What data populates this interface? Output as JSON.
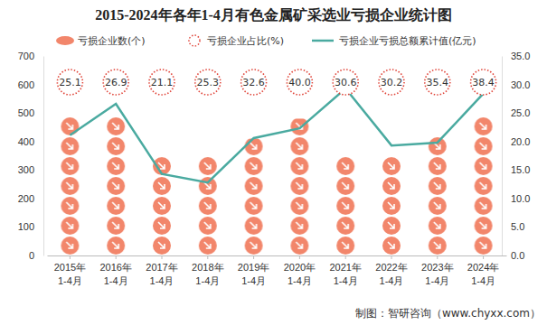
{
  "chart_data": {
    "type": "bar",
    "title": "2015-2024年各年1-4月有色金属矿采选业亏损企业统计图",
    "categories": [
      "2015年\n1-4月",
      "2016年\n1-4月",
      "2017年\n1-4月",
      "2018年\n1-4月",
      "2019年\n1-4月",
      "2020年\n1-4月",
      "2021年\n1-4月",
      "2022年\n1-4月",
      "2023年\n1-4月",
      "2024年\n1-4月"
    ],
    "series": [
      {
        "name": "亏损企业数(个)",
        "type": "bar",
        "marker": "circle",
        "color": "#f2866b",
        "values": [
          485,
          490,
          345,
          350,
          410,
          480,
          350,
          345,
          415,
          490
        ]
      },
      {
        "name": "亏损企业占比(%)",
        "type": "scatter",
        "marker": "circle",
        "line_style": "dotted",
        "color": "#e0453a",
        "data_labels": true,
        "values": [
          25.1,
          26.9,
          21.1,
          25.3,
          32.6,
          40,
          30.6,
          30.2,
          35.4,
          38.4
        ],
        "value_labels": [
          "25.1",
          "26.9",
          "21.1",
          "25.3",
          "32.6",
          "40.0",
          "30.6",
          "30.2",
          "35.4",
          "38.4"
        ]
      },
      {
        "name": "亏损企业亏损总额累计值(亿元)",
        "type": "line",
        "axis": "y2",
        "color": "#4aaaa0",
        "values": [
          21.1,
          26.6,
          14.3,
          12.8,
          20.6,
          22.3,
          29.3,
          19.3,
          19.8,
          28.4
        ]
      }
    ],
    "ylim": [
      0,
      700
    ],
    "yticks": [
      0,
      100,
      200,
      300,
      400,
      500,
      600,
      700
    ],
    "y2lim": [
      0,
      35
    ],
    "y2ticks": [
      {
        "value": 0,
        "label": "0.0"
      },
      {
        "value": 5,
        "label": "5.0"
      },
      {
        "value": 10,
        "label": "10.0"
      },
      {
        "value": 15,
        "label": "15.0"
      },
      {
        "value": 20,
        "label": "20.0"
      },
      {
        "value": 25,
        "label": "25.0"
      },
      {
        "value": 30,
        "label": "30.0"
      },
      {
        "value": 35,
        "label": "35.0"
      }
    ],
    "grid": false,
    "legend": "top",
    "annotations": [
      "制图：智研咨询（www.chyxx.com）"
    ]
  }
}
